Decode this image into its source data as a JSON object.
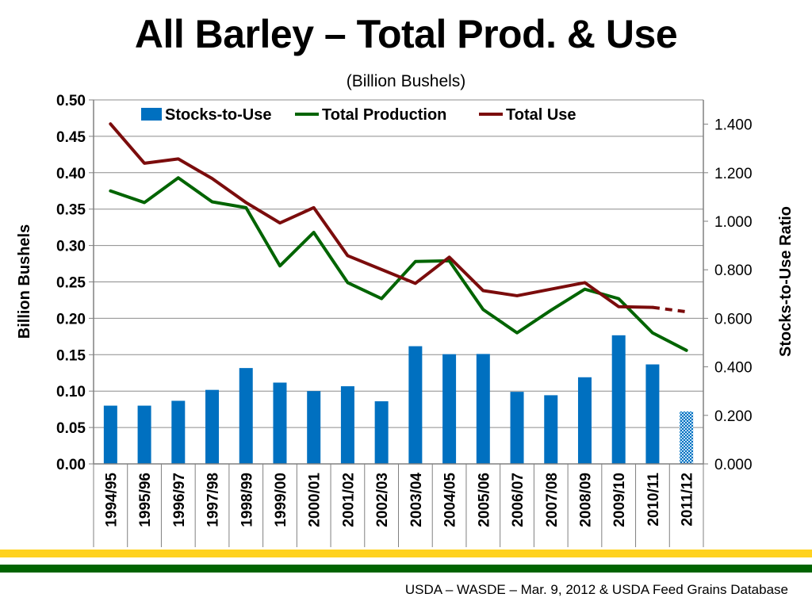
{
  "slide": {
    "title": "All Barley – Total Prod. & Use",
    "subtitle": "(Billion Bushels)",
    "source": "USDA – WASDE – Mar. 9, 2012 & USDA Feed Grains Database"
  },
  "colors": {
    "bars": "#0070c0",
    "production": "#006400",
    "use": "#7b0c0c",
    "band_yellow": "#ffd21f",
    "band_green": "#006400"
  },
  "chart_data": {
    "type": "bar",
    "title": "",
    "categories": [
      "1994/95",
      "1995/96",
      "1996/97",
      "1997/98",
      "1998/99",
      "1999/00",
      "2000/01",
      "2001/02",
      "2002/03",
      "2003/04",
      "2004/05",
      "2005/06",
      "2006/07",
      "2007/08",
      "2008/09",
      "2009/10",
      "2010/11",
      "2011/12"
    ],
    "xlabel": "",
    "ylabel": "Billion Bushels",
    "y2label": "Stocks-to-Use Ratio",
    "ylim": [
      0,
      0.5
    ],
    "y2lim": [
      0,
      1.5
    ],
    "yticks": [
      "0.00",
      "0.05",
      "0.10",
      "0.15",
      "0.20",
      "0.25",
      "0.30",
      "0.35",
      "0.40",
      "0.45",
      "0.50"
    ],
    "y2ticks": [
      "0.000",
      "0.200",
      "0.400",
      "0.600",
      "0.800",
      "1.000",
      "1.200",
      "1.400"
    ],
    "grid": true,
    "legend_position": "top",
    "series": [
      {
        "name": "Stocks-to-Use",
        "type": "bar",
        "axis": "y2",
        "values": [
          0.24,
          0.24,
          0.26,
          0.305,
          0.395,
          0.335,
          0.3,
          0.32,
          0.258,
          0.485,
          0.452,
          0.453,
          0.297,
          0.283,
          0.357,
          0.53,
          0.41,
          0.216
        ],
        "projected_last": true
      },
      {
        "name": "Total Production",
        "type": "line",
        "axis": "y",
        "values": [
          0.375,
          0.359,
          0.393,
          0.36,
          0.352,
          0.272,
          0.318,
          0.249,
          0.227,
          0.278,
          0.279,
          0.212,
          0.18,
          0.211,
          0.24,
          0.227,
          0.18,
          0.156
        ]
      },
      {
        "name": "Total Use",
        "type": "line",
        "axis": "y",
        "values": [
          0.467,
          0.413,
          0.419,
          0.392,
          0.359,
          0.331,
          0.352,
          0.286,
          0.267,
          0.248,
          0.284,
          0.238,
          0.231,
          0.24,
          0.249,
          0.216,
          0.215,
          0.209
        ],
        "projected_last": true
      }
    ]
  }
}
